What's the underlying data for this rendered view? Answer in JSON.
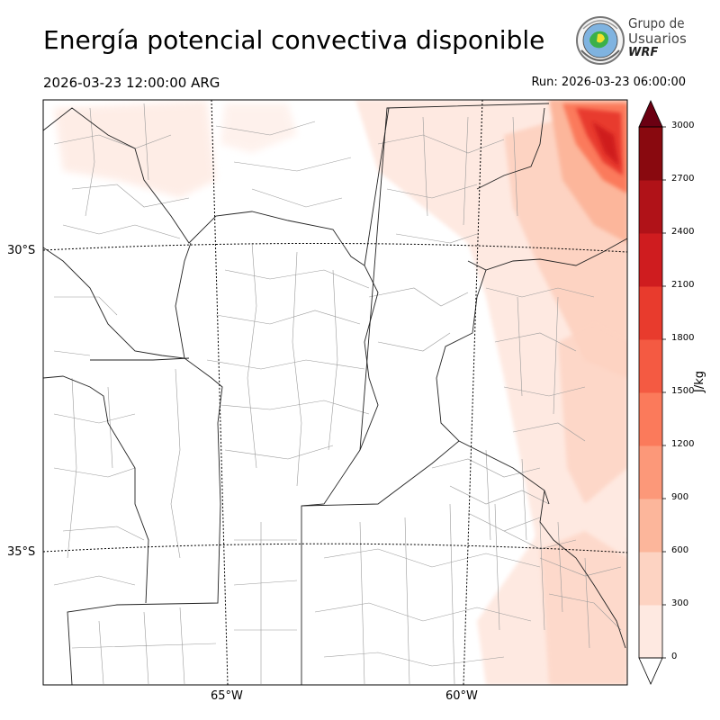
{
  "header": {
    "title": "Energía potencial convectiva disponible",
    "valid_time": "2026-03-23 12:00:00 ARG",
    "run_time": "Run: 2026-03-23 06:00:00"
  },
  "logo": {
    "line1": "Grupo de",
    "line2": "Usuarios",
    "line3": "WRF"
  },
  "map": {
    "lat_labels": [
      "30°S",
      "35°S"
    ],
    "lon_labels": [
      "65°W",
      "60°W"
    ]
  },
  "colorbar": {
    "unit": "J/kg",
    "levels": [
      "0",
      "300",
      "600",
      "900",
      "1200",
      "1500",
      "1800",
      "2100",
      "2400",
      "2700",
      "3000"
    ],
    "colors": [
      "#fee9e1",
      "#fdd3c2",
      "#fcb69b",
      "#fc9879",
      "#fb7a5b",
      "#f45a42",
      "#e83b2d",
      "#cf1c1f",
      "#b01218",
      "#89090f",
      "#6b0012"
    ],
    "extend": "both"
  }
}
